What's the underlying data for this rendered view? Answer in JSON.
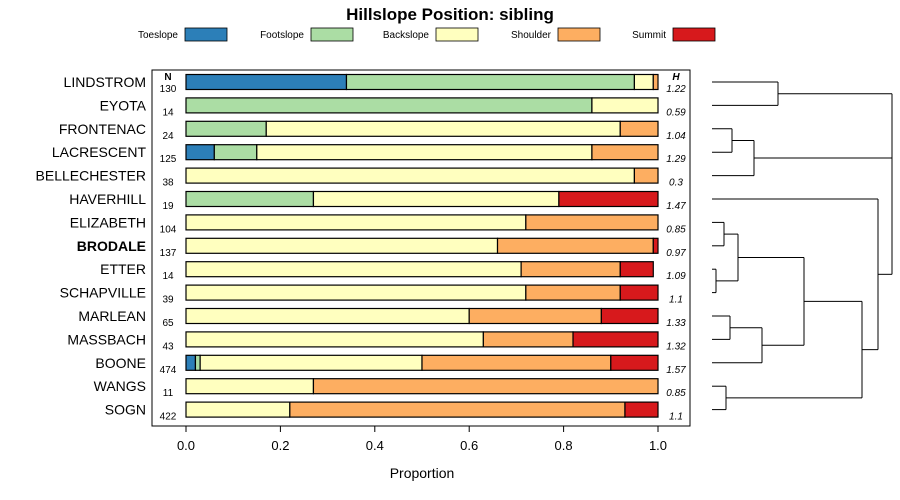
{
  "chart_data": {
    "type": "bar",
    "orientation": "horizontal",
    "stacked": true,
    "title": "Hillslope Position: sibling",
    "xlabel": "Proportion",
    "ylabel": "",
    "xlim": [
      0,
      1
    ],
    "x_ticks": [
      "0.0",
      "0.2",
      "0.4",
      "0.6",
      "0.8",
      "1.0"
    ],
    "n_header": "N",
    "h_header": "H",
    "highlighted_category": "BRODALE",
    "series": [
      {
        "name": "Toeslope",
        "color": "#2c7fb8"
      },
      {
        "name": "Footslope",
        "color": "#abdda4"
      },
      {
        "name": "Backslope",
        "color": "#ffffbf"
      },
      {
        "name": "Shoulder",
        "color": "#fdae61"
      },
      {
        "name": "Summit",
        "color": "#d7191c"
      }
    ],
    "categories": [
      "LINDSTROM",
      "EYOTA",
      "FRONTENAC",
      "LACRESCENT",
      "BELLECHESTER",
      "HAVERHILL",
      "ELIZABETH",
      "BRODALE",
      "ETTER",
      "SCHAPVILLE",
      "MARLEAN",
      "MASSBACH",
      "BOONE",
      "WANGS",
      "SOGN"
    ],
    "n": [
      "130",
      "14",
      "24",
      "125",
      "38",
      "19",
      "104",
      "137",
      "14",
      "39",
      "65",
      "43",
      "474",
      "11",
      "422"
    ],
    "h": [
      "1.22",
      "0.59",
      "1.04",
      "1.29",
      "0.3",
      "1.47",
      "0.85",
      "0.97",
      "1.09",
      "1.1",
      "1.33",
      "1.32",
      "1.57",
      "0.85",
      "1.1"
    ],
    "values": [
      [
        0.34,
        0.61,
        0.04,
        0.01,
        0.0
      ],
      [
        0.0,
        0.86,
        0.14,
        0.0,
        0.0
      ],
      [
        0.0,
        0.17,
        0.75,
        0.08,
        0.0
      ],
      [
        0.06,
        0.09,
        0.71,
        0.14,
        0.0
      ],
      [
        0.0,
        0.0,
        0.95,
        0.05,
        0.0
      ],
      [
        0.0,
        0.27,
        0.52,
        0.0,
        0.21
      ],
      [
        0.0,
        0.0,
        0.72,
        0.28,
        0.0
      ],
      [
        0.0,
        0.0,
        0.66,
        0.33,
        0.01
      ],
      [
        0.0,
        0.0,
        0.71,
        0.21,
        0.07
      ],
      [
        0.0,
        0.0,
        0.72,
        0.2,
        0.08
      ],
      [
        0.0,
        0.0,
        0.6,
        0.28,
        0.12
      ],
      [
        0.0,
        0.0,
        0.63,
        0.19,
        0.18
      ],
      [
        0.02,
        0.01,
        0.47,
        0.4,
        0.1
      ],
      [
        0.0,
        0.0,
        0.27,
        0.73,
        0.0
      ],
      [
        0.0,
        0.0,
        0.22,
        0.71,
        0.07
      ]
    ],
    "dendrogram": {
      "type": "hierarchical-clustering",
      "side": "right",
      "merges": [
        [
          "LINDSTROM",
          "EYOTA"
        ],
        [
          "FRONTENAC",
          "LACRESCENT"
        ],
        [
          "FRONTENAC+LACRESCENT",
          "BELLECHESTER"
        ],
        [
          "ELIZABETH",
          "BRODALE"
        ],
        [
          "ETTER",
          "SCHAPVILLE"
        ],
        [
          "ELIZABETH+BRODALE",
          "ETTER+SCHAPVILLE"
        ],
        [
          "MARLEAN",
          "MASSBACH"
        ],
        [
          "MARLEAN+MASSBACH",
          "BOONE"
        ],
        [
          "ELIZABETH..SCHAPVILLE",
          "MARLEAN..BOONE"
        ],
        [
          "WANGS",
          "SOGN"
        ],
        [
          "ELIZABETH..BOONE",
          "WANGS+SOGN"
        ],
        [
          "HAVERHILL",
          "ELIZABETH..SOGN"
        ],
        [
          "FRONTENAC..BELLECHESTER",
          "HAVERHILL..SOGN"
        ],
        [
          "LINDSTROM+EYOTA",
          "FRONTENAC..SOGN"
        ]
      ]
    }
  }
}
